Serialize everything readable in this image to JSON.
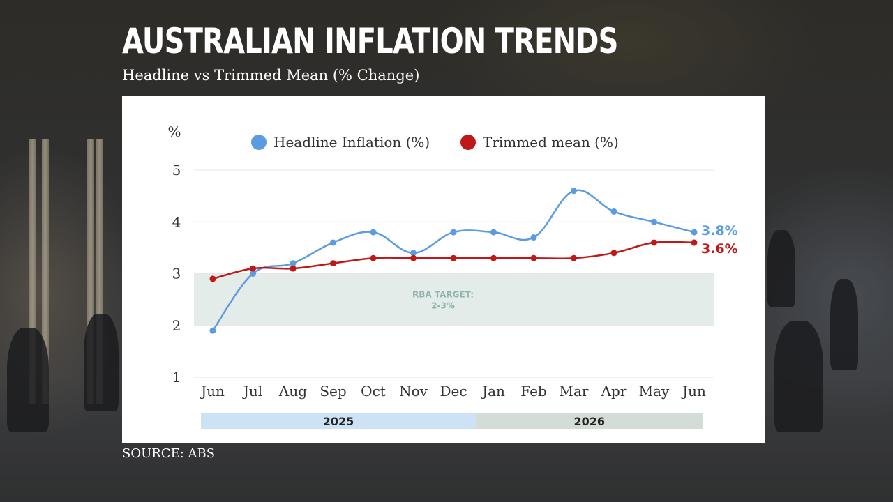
{
  "title": "AUSTRALIAN INFLATION TRENDS",
  "subtitle": "Headline vs Trimmed Mean (% Change)",
  "source": "SOURCE: ABS",
  "chart_data": {
    "type": "line",
    "title": "AUSTRALIAN INFLATION TRENDS",
    "subtitle": "Headline vs Trimmed Mean (% Change)",
    "ylabel": "%",
    "xlabel": "",
    "categories": [
      "Jun",
      "Jul",
      "Aug",
      "Sep",
      "Oct",
      "Nov",
      "Dec",
      "Jan",
      "Feb",
      "Mar",
      "Apr",
      "May",
      "Jun"
    ],
    "ylim": [
      1,
      5
    ],
    "yticks": [
      "1",
      "2",
      "3",
      "4",
      "5"
    ],
    "grid": true,
    "legend_position": "top",
    "series": [
      {
        "name": "Headline Inflation (%)",
        "color": "#5b9be0",
        "values": [
          1.9,
          3.0,
          3.2,
          3.6,
          3.8,
          3.4,
          3.8,
          3.8,
          3.7,
          4.6,
          4.2,
          4.0,
          3.8
        ],
        "end_label": "3.8%"
      },
      {
        "name": "Trimmed mean (%)",
        "color": "#c01818",
        "values": [
          2.9,
          3.1,
          3.1,
          3.2,
          3.3,
          3.3,
          3.3,
          3.3,
          3.3,
          3.3,
          3.4,
          3.6,
          3.6
        ],
        "end_label": "3.6%"
      }
    ],
    "target_band": {
      "low": 2,
      "high": 3,
      "label_line1": "RBA TARGET:",
      "label_line2": "2-3%",
      "color": "#e4ece9"
    },
    "year_bands": [
      {
        "label": "2025",
        "start_index": 0,
        "end_index": 6,
        "color": "#cde3f5"
      },
      {
        "label": "2026",
        "start_index": 7,
        "end_index": 12,
        "color": "#d4dcd6"
      }
    ]
  }
}
